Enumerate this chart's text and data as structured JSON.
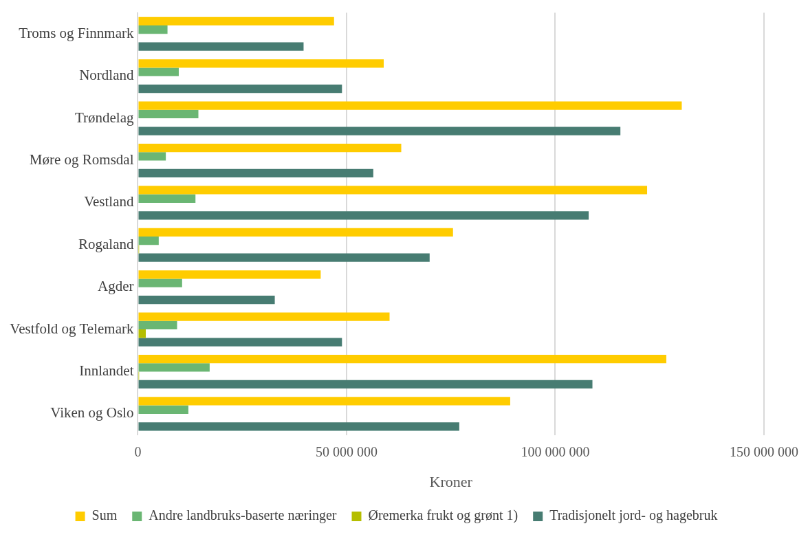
{
  "chart_data": {
    "type": "bar",
    "orientation": "horizontal",
    "xlabel": "Kroner",
    "categories": [
      "Troms og Finnmark",
      "Nordland",
      "Trøndelag",
      "Møre og Romsdal",
      "Vestland",
      "Rogaland",
      "Agder",
      "Vestfold og Telemark",
      "Innlandet",
      "Viken og Oslo"
    ],
    "series": [
      {
        "name": "Sum",
        "color": "#ffcc00",
        "values": [
          47000000,
          58900000,
          130300000,
          63100000,
          122000000,
          75500000,
          43800000,
          60300000,
          126600000,
          89200000
        ]
      },
      {
        "name": "Andre landbruks-baserte næringer",
        "color": "#6ab673",
        "values": [
          7100000,
          9800000,
          14500000,
          6700000,
          13800000,
          5000000,
          10600000,
          9400000,
          17200000,
          12100000
        ]
      },
      {
        "name": "Øremerka frukt og grønt 1)",
        "color": "#b5be00",
        "values": [
          0,
          0,
          0,
          0,
          0,
          300000,
          0,
          1900000,
          300000,
          0
        ]
      },
      {
        "name": "Tradisjonelt jord- og hagebruk",
        "color": "#477c72",
        "values": [
          39700000,
          48900000,
          115600000,
          56400000,
          108000000,
          69900000,
          32800000,
          48900000,
          108900000,
          77000000
        ]
      }
    ],
    "xlim": [
      0,
      150000000
    ],
    "xticks": [
      {
        "value": 0,
        "label": "0"
      },
      {
        "value": 50000000,
        "label": "50 000 000"
      },
      {
        "value": 100000000,
        "label": "100 000 000"
      },
      {
        "value": 150000000,
        "label": "150 000 000"
      }
    ],
    "grid": "x",
    "legend": "bottom"
  }
}
